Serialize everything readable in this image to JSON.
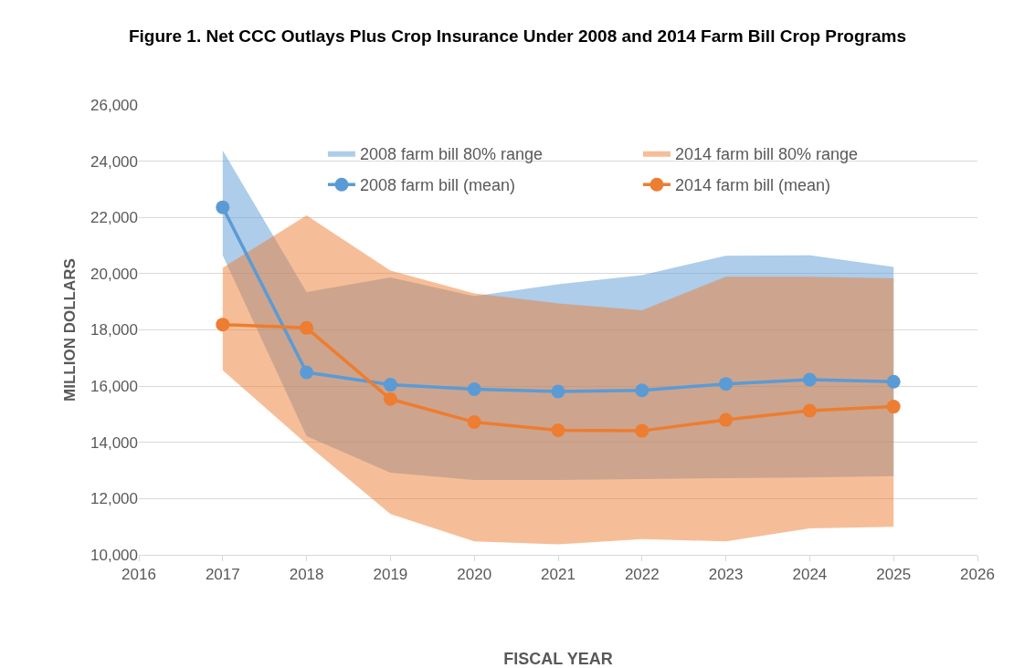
{
  "chart_data": {
    "type": "line",
    "title": "Figure 1. Net CCC Outlays Plus Crop Insurance Under 2008 and 2014 Farm Bill Crop Programs",
    "xlabel": "FISCAL YEAR",
    "ylabel": "MILLION DOLLARS",
    "x": [
      2017,
      2018,
      2019,
      2020,
      2021,
      2022,
      2023,
      2024,
      2025
    ],
    "series": [
      {
        "name": "2008 farm bill 80% range",
        "type": "area",
        "color": "#5b9bd5",
        "values": [
          null,
          null,
          null,
          null,
          null,
          null,
          null,
          null,
          null
        ],
        "lower": [
          20650,
          14220,
          12920,
          12660,
          12660,
          12690,
          12730,
          12750,
          12800
        ],
        "upper": [
          24380,
          19350,
          19870,
          19200,
          19620,
          19950,
          20640,
          20650,
          20240
        ]
      },
      {
        "name": "2014 farm bill 80% range",
        "type": "area",
        "color": "#ed7d31",
        "values": [
          null,
          null,
          null,
          null,
          null,
          null,
          null,
          null,
          null
        ],
        "lower": [
          16560,
          13940,
          11450,
          10480,
          10370,
          10560,
          10480,
          10940,
          11000
        ],
        "upper": [
          20210,
          22070,
          20110,
          19300,
          18940,
          18700,
          19890,
          19890,
          19830
        ]
      },
      {
        "name": "2008 farm bill (mean)",
        "color": "#5b9bd5",
        "values": [
          22360,
          16490,
          16050,
          15890,
          15810,
          15850,
          16080,
          16230,
          16160
        ]
      },
      {
        "name": "2014 farm bill (mean)",
        "color": "#ed7d31",
        "values": [
          18190,
          18070,
          15540,
          14720,
          14430,
          14410,
          14800,
          15130,
          15270
        ]
      }
    ],
    "xlim": [
      2016,
      2026
    ],
    "xticks": [
      2016,
      2017,
      2018,
      2019,
      2020,
      2021,
      2022,
      2023,
      2024,
      2025,
      2026
    ],
    "ylim": [
      10000,
      26000
    ],
    "yticks": [
      {
        "value": 10000,
        "label": "10,000"
      },
      {
        "value": 12000,
        "label": "12,000"
      },
      {
        "value": 14000,
        "label": "14,000"
      },
      {
        "value": 16000,
        "label": "16,000"
      },
      {
        "value": 18000,
        "label": "18,000"
      },
      {
        "value": 20000,
        "label": "20,000"
      },
      {
        "value": 22000,
        "label": "22,000"
      },
      {
        "value": 24000,
        "label": "24,000"
      },
      {
        "value": 26000,
        "label": "26,000"
      }
    ],
    "grid": "y",
    "legend": "top",
    "marker": "circle",
    "line_style": "solid"
  }
}
